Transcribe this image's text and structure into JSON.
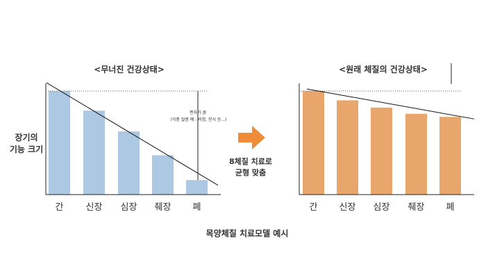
{
  "caption": "목양체질 치료모델 예시",
  "ylabel_line1": "장기의",
  "ylabel_line2": "기능 크기",
  "arrow_label_line1": "8체질 치료로",
  "arrow_label_line2": "균형 맞춤",
  "colors": {
    "left_bar": "#adc8e3",
    "right_bar": "#e8a56c",
    "arrow": "#ef8c3a",
    "axis": "#222222",
    "trend": "#111111",
    "reference": "#555555"
  },
  "chart_data": [
    {
      "type": "bar",
      "title": "<무너진 건강상태>",
      "categories": [
        "간",
        "신장",
        "심장",
        "췌장",
        "폐"
      ],
      "values": [
        100,
        81,
        61,
        38,
        14
      ],
      "ylim": [
        0,
        106
      ],
      "xlabel": "",
      "ylabel": "",
      "reference_line_value": 100,
      "trend_line": [
        108,
        9
      ],
      "annotation_line1": "편차가 큼",
      "annotation_line2": "(각종 질병 예 : 비염, 천식 등...)",
      "grid": false
    },
    {
      "type": "bar",
      "title": "<원래 체질의 건강상태>",
      "categories": [
        "간",
        "신장",
        "심장",
        "췌장",
        "폐"
      ],
      "values": [
        100,
        91,
        84,
        78,
        75
      ],
      "ylim": [
        0,
        106
      ],
      "xlabel": "",
      "ylabel": "",
      "reference_line_value": 100,
      "trend_line": [
        102,
        73
      ],
      "grid": false
    }
  ]
}
